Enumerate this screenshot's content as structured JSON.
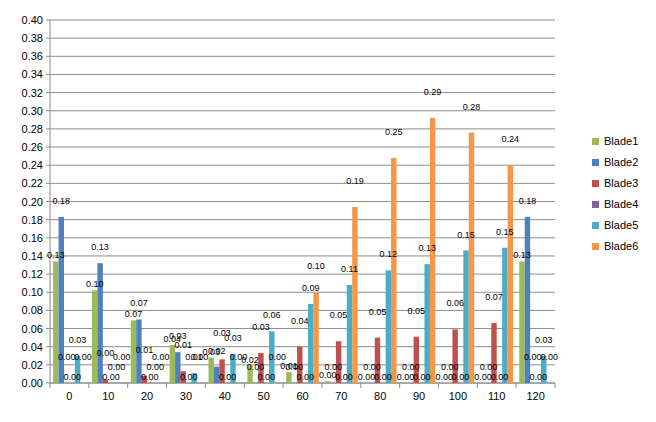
{
  "chart_data": {
    "type": "bar",
    "categories": [
      "0",
      "10",
      "20",
      "30",
      "40",
      "50",
      "60",
      "70",
      "80",
      "90",
      "100",
      "110",
      "120"
    ],
    "series": [
      {
        "name": "Blade1",
        "color": "#9bbb59",
        "values": [
          0.134,
          0.102,
          0.069,
          0.042,
          0.028,
          0.019,
          0.012,
          0.002,
          0,
          0,
          0,
          0,
          0.134
        ],
        "value_labels": [
          "0.13",
          "0.10",
          "0.07",
          "0.04",
          "0.03",
          "0.02",
          "0.01",
          "0.00",
          "0.00",
          "0.00",
          "0.00",
          "0.00",
          "0.13"
        ]
      },
      {
        "name": "Blade2",
        "color": "#4f81bd",
        "values": [
          0.183,
          0.132,
          0.07,
          0.034,
          0.018,
          0,
          0,
          0,
          0,
          0,
          0,
          0,
          0.183
        ],
        "value_labels": [
          "0.18",
          "0.13",
          "0.07",
          "0.03",
          "0.02",
          "0.00",
          "0.00",
          "0.00",
          "0.00",
          "0.00",
          "0.00",
          "0.00",
          "0.18"
        ]
      },
      {
        "name": "Blade3",
        "color": "#c0504d",
        "values": [
          0,
          0.004,
          0.008,
          0.013,
          0.026,
          0.033,
          0.04,
          0.046,
          0.05,
          0.051,
          0.059,
          0.066,
          0
        ],
        "value_labels": [
          "0.00",
          "0.00",
          "0.01",
          "0.01",
          "0.03",
          "0.03",
          "0.04",
          "0.05",
          "0.05",
          "0.05",
          "0.06",
          "0.07",
          "0.00"
        ]
      },
      {
        "name": "Blade4",
        "color": "#8064a2",
        "values": [
          0,
          0,
          0,
          0,
          0,
          0,
          0,
          0,
          0,
          0,
          0,
          0,
          0
        ],
        "value_labels": [
          "0.00",
          "0.00",
          "0.00",
          "0.00",
          "0.00",
          "0.00",
          "0.00",
          "0.00",
          "0.00",
          "0.00",
          "0.00",
          "0.00",
          "0.00"
        ]
      },
      {
        "name": "Blade5",
        "color": "#4bacc6",
        "values": [
          0.03,
          0,
          0,
          0.011,
          0.032,
          0.057,
          0.087,
          0.108,
          0.124,
          0.131,
          0.146,
          0.149,
          0.03
        ],
        "value_labels": [
          "0.03",
          "0.00",
          "0.00",
          "0.01",
          "0.03",
          "0.06",
          "0.09",
          "0.11",
          "0.12",
          "0.13",
          "0.15",
          "0.15",
          "0.03"
        ]
      },
      {
        "name": "Blade6",
        "color": "#f79646",
        "values": [
          0,
          0,
          0,
          0,
          0,
          0,
          0.1,
          0.194,
          0.248,
          0.292,
          0.276,
          0.24,
          0
        ],
        "value_labels": [
          "0.00",
          "0.00",
          "0.00",
          "0.00",
          "0.00",
          "0.00",
          "0.10",
          "0.19",
          "0.25",
          "0.29",
          "0.28",
          "0.24",
          "0.00"
        ]
      }
    ],
    "ylim": [
      0,
      0.4
    ],
    "yticks": [
      {
        "value": 0,
        "label": "0.00"
      },
      {
        "value": 0.02,
        "label": "0.02"
      },
      {
        "value": 0.04,
        "label": "0.04"
      },
      {
        "value": 0.06,
        "label": "0.06"
      },
      {
        "value": 0.08,
        "label": "0.08"
      },
      {
        "value": 0.1,
        "label": "0.10"
      },
      {
        "value": 0.12,
        "label": "0.12"
      },
      {
        "value": 0.14,
        "label": "0.14"
      },
      {
        "value": 0.16,
        "label": "0.16"
      },
      {
        "value": 0.18,
        "label": "0.18"
      },
      {
        "value": 0.2,
        "label": "0.20"
      },
      {
        "value": 0.22,
        "label": "0.22"
      },
      {
        "value": 0.24,
        "label": "0.24"
      },
      {
        "value": 0.26,
        "label": "0.26"
      },
      {
        "value": 0.28,
        "label": "0.28"
      },
      {
        "value": 0.3,
        "label": "0.30"
      },
      {
        "value": 0.32,
        "label": "0.32"
      },
      {
        "value": 0.34,
        "label": "0.34"
      },
      {
        "value": 0.36,
        "label": "0.36"
      },
      {
        "value": 0.38,
        "label": "0.38"
      },
      {
        "value": 0.4,
        "label": "0.40"
      }
    ],
    "grid": true,
    "legend": "right",
    "data_labels": true
  }
}
